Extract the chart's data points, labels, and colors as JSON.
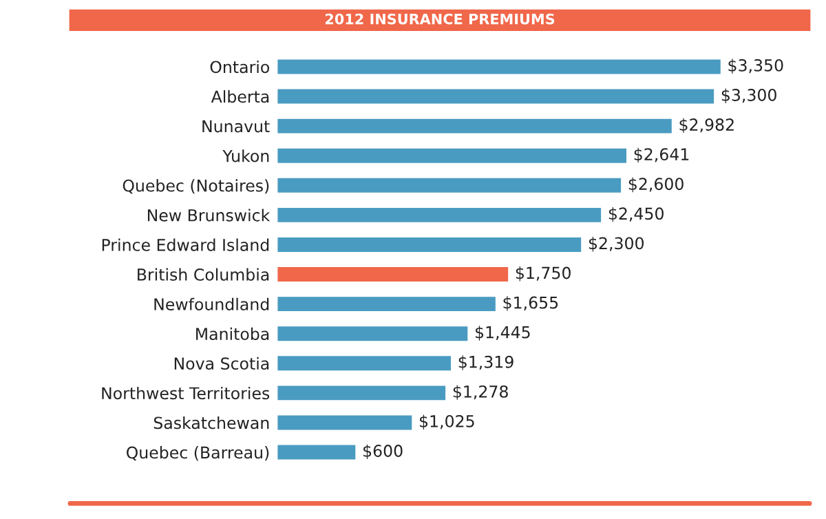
{
  "chart_data": {
    "type": "bar",
    "orientation": "horizontal",
    "title": "2012 INSURANCE PREMIUMS",
    "categories": [
      "Ontario",
      "Alberta",
      "Nunavut",
      "Yukon",
      "Quebec (Notaires)",
      "New Brunswick",
      "Prince Edward Island",
      "British Columbia",
      "Newfoundland",
      "Manitoba",
      "Nova Scotia",
      "Northwest Territories",
      "Saskatchewan",
      "Quebec (Barreau)"
    ],
    "values": [
      3350,
      3300,
      2982,
      2641,
      2600,
      2450,
      2300,
      1750,
      1655,
      1445,
      1319,
      1278,
      1025,
      600
    ],
    "value_labels": [
      "$3,350",
      "$3,300",
      "$2,982",
      "$2,641",
      "$2,600",
      "$2,450",
      "$2,300",
      "$1,750",
      "$1,655",
      "$1,445",
      "$1,319",
      "$1,278",
      "$1,025",
      "$600"
    ],
    "colors": [
      "#4a9bc1",
      "#4a9bc1",
      "#4a9bc1",
      "#4a9bc1",
      "#4a9bc1",
      "#4a9bc1",
      "#4a9bc1",
      "#f0674a",
      "#4a9bc1",
      "#4a9bc1",
      "#4a9bc1",
      "#4a9bc1",
      "#4a9bc1",
      "#4a9bc1"
    ],
    "grid": false,
    "legend": false
  }
}
